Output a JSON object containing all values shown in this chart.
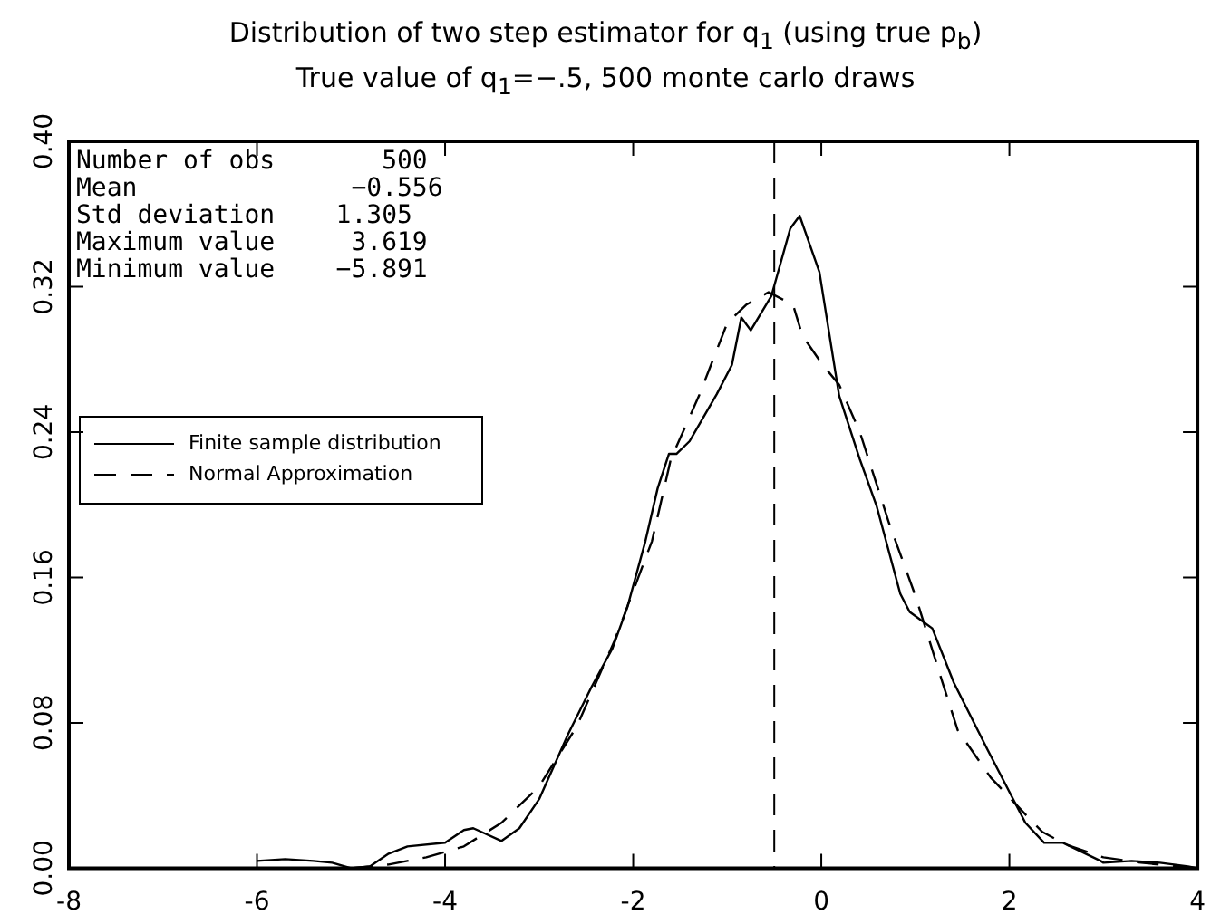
{
  "chart_data": {
    "type": "line",
    "title": "Distribution of two step estimator for q$_{1}$ (using true p$_{b}$)",
    "subtitle": "True value of q$_{1}$=−.5, 500 monte carlo draws",
    "annotations": [
      "Number of obs       500",
      "Mean              −0.556",
      "Std deviation    1.305",
      "Maximum value     3.619",
      "Minimum value    −5.891"
    ],
    "xlim": [
      -8,
      4
    ],
    "xticks": [
      -8,
      -6,
      -4,
      -2,
      0,
      2,
      4
    ],
    "ylim": [
      0,
      0.4
    ],
    "yticks": [
      {
        "value": 0,
        "label": "0.00"
      },
      {
        "value": 0.08,
        "label": "0.08"
      },
      {
        "value": 0.16,
        "label": "0.16"
      },
      {
        "value": 0.24,
        "label": "0.24"
      },
      {
        "value": 0.32,
        "label": "0.32"
      },
      {
        "value": 0.4,
        "label": "0.40"
      }
    ],
    "grid": false,
    "legend": "top left",
    "marker": "none",
    "ref_lines": [
      {
        "axis": "x",
        "value": -0.5,
        "color": "#000000",
        "line_style": "dashed"
      }
    ],
    "series": [
      {
        "name": "Finite sample distribution",
        "color": "#000000",
        "line_style": "solid",
        "x": [
          -6,
          -5.7,
          -5.4,
          -5.2,
          -5.0,
          -4.8,
          -4.6,
          -4.4,
          -4.0,
          -3.8,
          -3.7,
          -3.4,
          -3.21,
          -3.0,
          -2.69,
          -2.44,
          -2.22,
          -2.06,
          -1.87,
          -1.74,
          -1.62,
          -1.54,
          -1.4,
          -1.11,
          -0.95,
          -0.85,
          -0.75,
          -0.53,
          -0.33,
          -0.23,
          -0.02,
          0.19,
          0.41,
          0.59,
          0.84,
          0.94,
          1.18,
          1.41,
          1.77,
          2.17,
          2.37,
          2.57,
          2.97,
          3.0,
          3.3,
          3.6,
          3.9,
          4.0
        ],
        "values": [
          0.004,
          0.005,
          0.004,
          0.003,
          0.0,
          0.001,
          0.008,
          0.012,
          0.014,
          0.021,
          0.022,
          0.015,
          0.022,
          0.038,
          0.074,
          0.1,
          0.121,
          0.144,
          0.18,
          0.209,
          0.228,
          0.228,
          0.235,
          0.261,
          0.277,
          0.303,
          0.296,
          0.315,
          0.352,
          0.359,
          0.328,
          0.26,
          0.225,
          0.199,
          0.151,
          0.141,
          0.132,
          0.102,
          0.065,
          0.025,
          0.014,
          0.014,
          0.004,
          0.003,
          0.004,
          0.003,
          0.001,
          0.0
        ]
      },
      {
        "name": "Normal Approximation",
        "color": "#000000",
        "line_style": "dashed",
        "x": [
          -5.0,
          -4.6,
          -4.2,
          -3.8,
          -3.4,
          -3.0,
          -2.6,
          -2.2,
          -1.8,
          -1.6,
          -1.3,
          -1.0,
          -0.8,
          -0.56,
          -0.3,
          -0.2,
          0.0,
          0.19,
          0.41,
          0.72,
          1.0,
          1.29,
          1.45,
          1.8,
          2.2,
          2.35,
          2.6,
          3.0,
          3.4,
          3.8,
          4.0
        ],
        "values": [
          0.0,
          0.002,
          0.006,
          0.012,
          0.025,
          0.045,
          0.078,
          0.125,
          0.18,
          0.225,
          0.26,
          0.3,
          0.31,
          0.317,
          0.31,
          0.293,
          0.278,
          0.266,
          0.24,
          0.19,
          0.15,
          0.102,
          0.076,
          0.05,
          0.028,
          0.02,
          0.013,
          0.006,
          0.003,
          0.001,
          0.0
        ]
      }
    ]
  }
}
